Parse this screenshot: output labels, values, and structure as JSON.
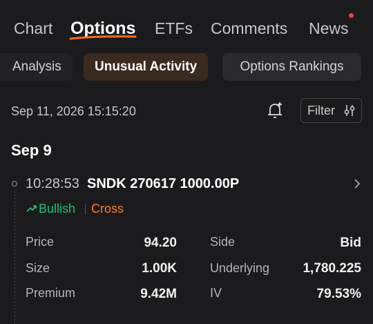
{
  "tabs": [
    "Chart",
    "Options",
    "ETFs",
    "Comments",
    "News"
  ],
  "subtabs": [
    "Analysis",
    "Unusual Activity",
    "Options Rankings"
  ],
  "timestamp": "Sep 11, 2026 15:15:20",
  "filter": "Filter",
  "group": {
    "date": "Sep 9",
    "entry": {
      "time": "10:28:53",
      "contract": "SNDK 270617 1000.00P",
      "sentiment": "Bullish",
      "trade_type": "Cross",
      "details": [
        {
          "label": "Price",
          "value": "94.20"
        },
        {
          "label": "Size",
          "value": "1.00K"
        },
        {
          "label": "Premium",
          "value": "9.42M"
        },
        {
          "label": "Side",
          "value": "Bid"
        },
        {
          "label": "Underlying",
          "value": "1,780.225"
        },
        {
          "label": "IV",
          "value": "79.53%"
        }
      ]
    }
  }
}
